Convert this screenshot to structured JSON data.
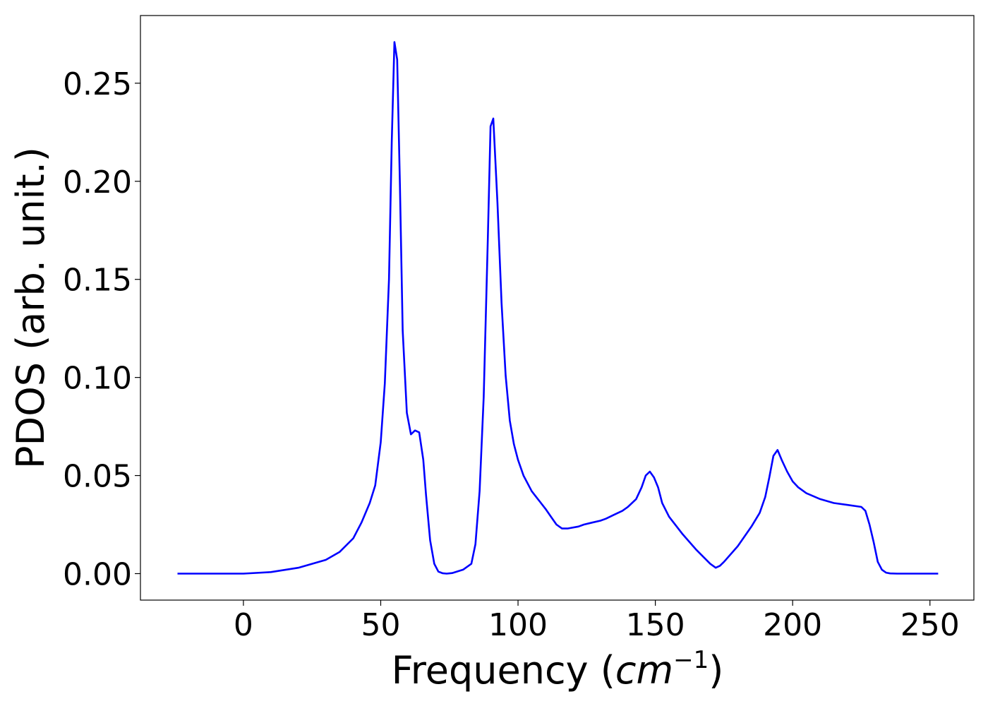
{
  "chart_data": {
    "type": "line",
    "xlabel": "Frequency (",
    "xlabel_math": "cm",
    "xlabel_exponent": "−1",
    "xlabel_close": ")",
    "ylabel": "PDOS (arb. unit.)",
    "xlim": [
      -37.5,
      266
    ],
    "ylim": [
      -0.0135,
      0.2845
    ],
    "xticks": [
      0,
      50,
      100,
      150,
      200,
      250
    ],
    "xtick_labels": [
      "0",
      "50",
      "100",
      "150",
      "200",
      "250"
    ],
    "yticks": [
      0.0,
      0.05,
      0.1,
      0.15,
      0.2,
      0.25
    ],
    "ytick_labels": [
      "0.00",
      "0.05",
      "0.10",
      "0.15",
      "0.20",
      "0.25"
    ],
    "grid": false,
    "legend": "none",
    "series": [
      {
        "color": "#0000ff",
        "x": [
          -24,
          0,
          10,
          20,
          30,
          35,
          40,
          43,
          46,
          48,
          50,
          51.5,
          53,
          54,
          55,
          56,
          57,
          58,
          59.5,
          61,
          62.5,
          64,
          65.5,
          66.5,
          68,
          69.5,
          71,
          72.5,
          74,
          76,
          80,
          83,
          84.5,
          86,
          87.5,
          89,
          90,
          91,
          92.5,
          94,
          95.5,
          97,
          98.5,
          100,
          102,
          105,
          110,
          112,
          114,
          116,
          118,
          122,
          124,
          127,
          130,
          132,
          135,
          138,
          140,
          143,
          145,
          146.5,
          148,
          149.5,
          151,
          152.5,
          155,
          160,
          165,
          170,
          172,
          173.5,
          175,
          180,
          185,
          188,
          190,
          191.5,
          193,
          194.5,
          196,
          198,
          200,
          202,
          205,
          210,
          215,
          220,
          225,
          226.5,
          228,
          229.5,
          231,
          232.5,
          234,
          235.5,
          238,
          245,
          253
        ],
        "y": [
          0.0,
          0.0,
          0.0008,
          0.003,
          0.007,
          0.011,
          0.018,
          0.026,
          0.036,
          0.045,
          0.067,
          0.097,
          0.15,
          0.22,
          0.271,
          0.262,
          0.198,
          0.124,
          0.082,
          0.071,
          0.073,
          0.072,
          0.058,
          0.04,
          0.017,
          0.005,
          0.001,
          0.0002,
          0.0,
          0.0003,
          0.002,
          0.005,
          0.015,
          0.042,
          0.09,
          0.17,
          0.228,
          0.232,
          0.189,
          0.138,
          0.101,
          0.078,
          0.066,
          0.058,
          0.05,
          0.042,
          0.033,
          0.029,
          0.025,
          0.023,
          0.023,
          0.024,
          0.025,
          0.026,
          0.027,
          0.028,
          0.03,
          0.032,
          0.034,
          0.038,
          0.044,
          0.05,
          0.052,
          0.049,
          0.044,
          0.036,
          0.029,
          0.02,
          0.012,
          0.005,
          0.003,
          0.004,
          0.006,
          0.014,
          0.024,
          0.031,
          0.039,
          0.049,
          0.06,
          0.063,
          0.058,
          0.052,
          0.047,
          0.044,
          0.041,
          0.038,
          0.036,
          0.035,
          0.034,
          0.032,
          0.025,
          0.016,
          0.006,
          0.002,
          0.0005,
          0.0001,
          0.0,
          0.0,
          0.0
        ]
      }
    ]
  }
}
